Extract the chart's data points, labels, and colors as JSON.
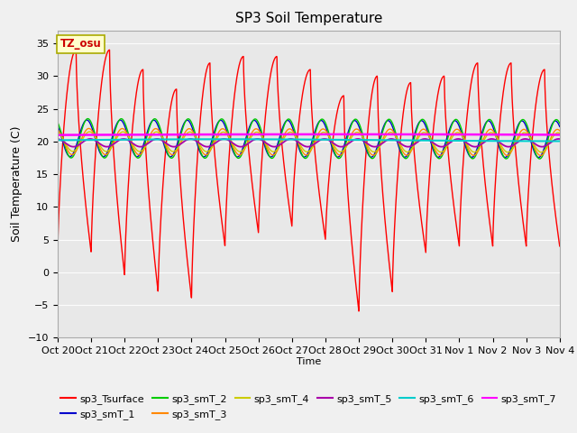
{
  "title": "SP3 Soil Temperature",
  "ylabel": "Soil Temperature (C)",
  "xlabel": "Time",
  "ylim": [
    -10,
    37
  ],
  "yticks": [
    -10,
    -5,
    0,
    5,
    10,
    15,
    20,
    25,
    30,
    35
  ],
  "x_labels": [
    "Oct 20",
    "Oct 21",
    "Oct 22",
    "Oct 23",
    "Oct 24",
    "Oct 25",
    "Oct 26",
    "Oct 27",
    "Oct 28",
    "Oct 29",
    "Oct 30",
    "Oct 31",
    "Nov 1",
    "Nov 2",
    "Nov 3",
    "Nov 4"
  ],
  "annotation_text": "TZ_osu",
  "annotation_color": "#cc0000",
  "annotation_bg": "#ffffcc",
  "annotation_edge": "#aaaa00",
  "series_colors": {
    "sp3_Tsurface": "#ff0000",
    "sp3_smT_1": "#0000cc",
    "sp3_smT_2": "#00cc00",
    "sp3_smT_3": "#ff8800",
    "sp3_smT_4": "#cccc00",
    "sp3_smT_5": "#aa00aa",
    "sp3_smT_6": "#00cccc",
    "sp3_smT_7": "#ff00ff"
  },
  "num_days": 15,
  "points_per_day": 288
}
